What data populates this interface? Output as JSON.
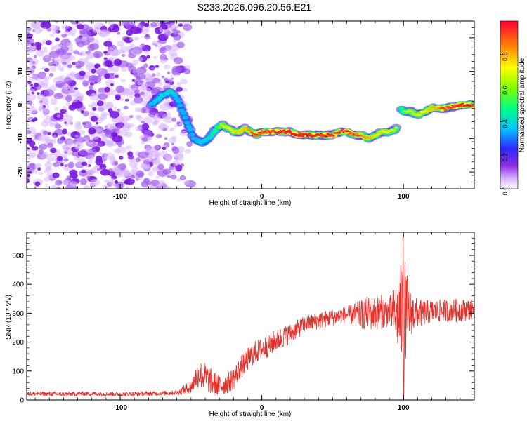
{
  "title": "S233.2026.096.20.56.E21",
  "chart_data": [
    {
      "type": "heatmap",
      "xlabel": "Height of straight line (km)",
      "ylabel": "Frequency (Hz)",
      "xlim": [
        -166,
        150
      ],
      "ylim": [
        -25,
        25
      ],
      "x_ticks": [
        -100,
        0,
        100
      ],
      "y_ticks": [
        -20,
        -10,
        0,
        10,
        20
      ],
      "colorbar": {
        "label": "Normalized spectral amplitude",
        "range": [
          0,
          1
        ],
        "ticks": [
          "0.0",
          "0.2",
          "0.4",
          "0.6",
          "0.8"
        ]
      },
      "trace": {
        "x": [
          -78,
          -70,
          -64,
          -60,
          -56,
          -52,
          -48,
          -44,
          -40,
          -36,
          -32,
          -28,
          -24,
          -20,
          -16,
          -12,
          -8,
          -4,
          0,
          5,
          10,
          15,
          20,
          25,
          30,
          40,
          50,
          55,
          60,
          65,
          70,
          75,
          80,
          85,
          90,
          95,
          97,
          98,
          100,
          105,
          110,
          115,
          120,
          125,
          130,
          140,
          150
        ],
        "y": [
          0,
          3,
          4,
          2,
          -2,
          -6,
          -10,
          -11,
          -11,
          -9,
          -7,
          -6,
          -7,
          -8,
          -8,
          -7,
          -8,
          -9,
          -8,
          -8,
          -8,
          -8,
          -8,
          -9,
          -9,
          -9,
          -9,
          -8,
          -8,
          -9,
          -9,
          -10,
          -9,
          -8,
          -8,
          -7,
          -7,
          -1,
          -2,
          -2,
          -3,
          -2,
          -1,
          -1,
          -1,
          0,
          0
        ],
        "amplitude": [
          0.3,
          0.35,
          0.4,
          0.3,
          0.3,
          0.3,
          0.3,
          0.3,
          0.35,
          0.4,
          0.5,
          0.6,
          0.65,
          0.7,
          0.7,
          0.75,
          0.8,
          0.85,
          0.85,
          0.9,
          0.9,
          0.95,
          0.95,
          0.95,
          0.95,
          0.9,
          0.9,
          0.85,
          0.85,
          0.8,
          0.8,
          0.75,
          0.7,
          0.7,
          0.65,
          0.6,
          0.5,
          0.5,
          0.55,
          0.6,
          0.65,
          0.7,
          0.75,
          0.8,
          0.85,
          0.9,
          0.9
        ]
      },
      "noise_region": {
        "x": [
          -166,
          -57
        ],
        "y": [
          -25,
          25
        ]
      }
    },
    {
      "type": "line",
      "xlabel": "Height of straight line (km)",
      "ylabel": "SNR (10 * v/v)",
      "xlim": [
        -166,
        150
      ],
      "ylim": [
        0,
        580
      ],
      "x_ticks": [
        -100,
        0,
        100
      ],
      "y_ticks": [
        0,
        100,
        200,
        300,
        400,
        500
      ],
      "color": "#e8302a",
      "x": [
        -166,
        -140,
        -120,
        -100,
        -80,
        -60,
        -50,
        -45,
        -40,
        -35,
        -30,
        -25,
        -20,
        -15,
        -10,
        -5,
        0,
        10,
        20,
        30,
        40,
        50,
        60,
        70,
        75,
        80,
        85,
        90,
        95,
        100,
        105,
        110,
        120,
        130,
        140,
        150
      ],
      "y": [
        22,
        20,
        22,
        20,
        22,
        25,
        45,
        90,
        80,
        60,
        50,
        55,
        75,
        110,
        140,
        165,
        175,
        205,
        230,
        260,
        275,
        285,
        295,
        295,
        300,
        300,
        305,
        305,
        300,
        290,
        300,
        300,
        305,
        310,
        310,
        315
      ],
      "variation": [
        8,
        8,
        8,
        8,
        8,
        8,
        25,
        50,
        50,
        45,
        40,
        35,
        40,
        40,
        40,
        40,
        40,
        40,
        35,
        30,
        30,
        30,
        30,
        50,
        60,
        60,
        60,
        50,
        110,
        220,
        80,
        50,
        40,
        40,
        40,
        35
      ]
    }
  ]
}
